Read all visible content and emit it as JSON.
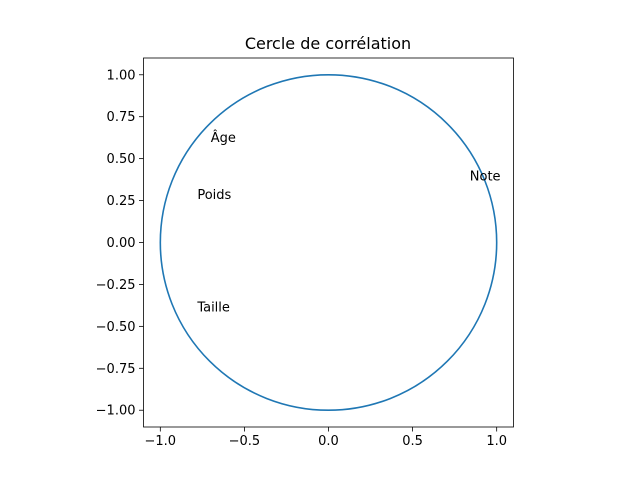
{
  "chart_data": {
    "type": "scatter",
    "title": "Cercle de corrélation",
    "xlabel": "",
    "ylabel": "",
    "xlim": [
      -1.1,
      1.1
    ],
    "ylim": [
      -1.1,
      1.1
    ],
    "grid": false,
    "aspect": "equal",
    "circle": {
      "center": [
        0,
        0
      ],
      "radius": 1,
      "color": "#1f77b4"
    },
    "x_ticks": [
      {
        "value": -1.0,
        "label": "−1.0"
      },
      {
        "value": -0.5,
        "label": "−0.5"
      },
      {
        "value": 0.0,
        "label": "0.0"
      },
      {
        "value": 0.5,
        "label": "0.5"
      },
      {
        "value": 1.0,
        "label": "1.0"
      }
    ],
    "y_ticks": [
      {
        "value": 1.0,
        "label": "1.00"
      },
      {
        "value": 0.75,
        "label": "0.75"
      },
      {
        "value": 0.5,
        "label": "0.50"
      },
      {
        "value": 0.25,
        "label": "0.25"
      },
      {
        "value": 0.0,
        "label": "0.00"
      },
      {
        "value": -0.25,
        "label": "−0.25"
      },
      {
        "value": -0.5,
        "label": "−0.50"
      },
      {
        "value": -0.75,
        "label": "−0.75"
      },
      {
        "value": -1.0,
        "label": "−1.00"
      }
    ],
    "points": [
      {
        "label": "Âge",
        "x": -0.7,
        "y": 0.6
      },
      {
        "label": "Poids",
        "x": -0.78,
        "y": 0.26
      },
      {
        "label": "Note",
        "x": 0.84,
        "y": 0.37
      },
      {
        "label": "Taille",
        "x": -0.78,
        "y": -0.41
      }
    ]
  }
}
